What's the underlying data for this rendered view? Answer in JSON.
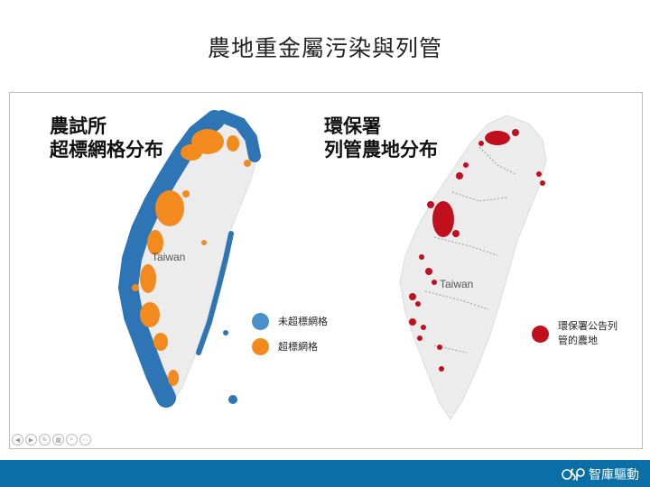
{
  "slide": {
    "title": "農地重金屬污染與列管"
  },
  "left_map": {
    "heading_line1": "農試所",
    "heading_line2": "超標網格分布",
    "map_label": "Taiwan",
    "legend": [
      {
        "label": "未超標網格",
        "color": "#4a90c8"
      },
      {
        "label": "超標網格",
        "color": "#f28a1e"
      }
    ],
    "colors": {
      "island": "#ececec",
      "grid_normal": "#2e75b6",
      "grid_over": "#f28a1e"
    }
  },
  "right_map": {
    "heading_line1": "環保署",
    "heading_line2": "列管農地分布",
    "map_label": "Taiwan",
    "legend": [
      {
        "label_line1": "環保署公告列",
        "label_line2": "管的農地",
        "color": "#c0101e"
      }
    ],
    "colors": {
      "island": "#ececec",
      "points": "#c0101e"
    }
  },
  "footer": {
    "brand": "智庫驅動",
    "color": "#0a6fa6"
  }
}
